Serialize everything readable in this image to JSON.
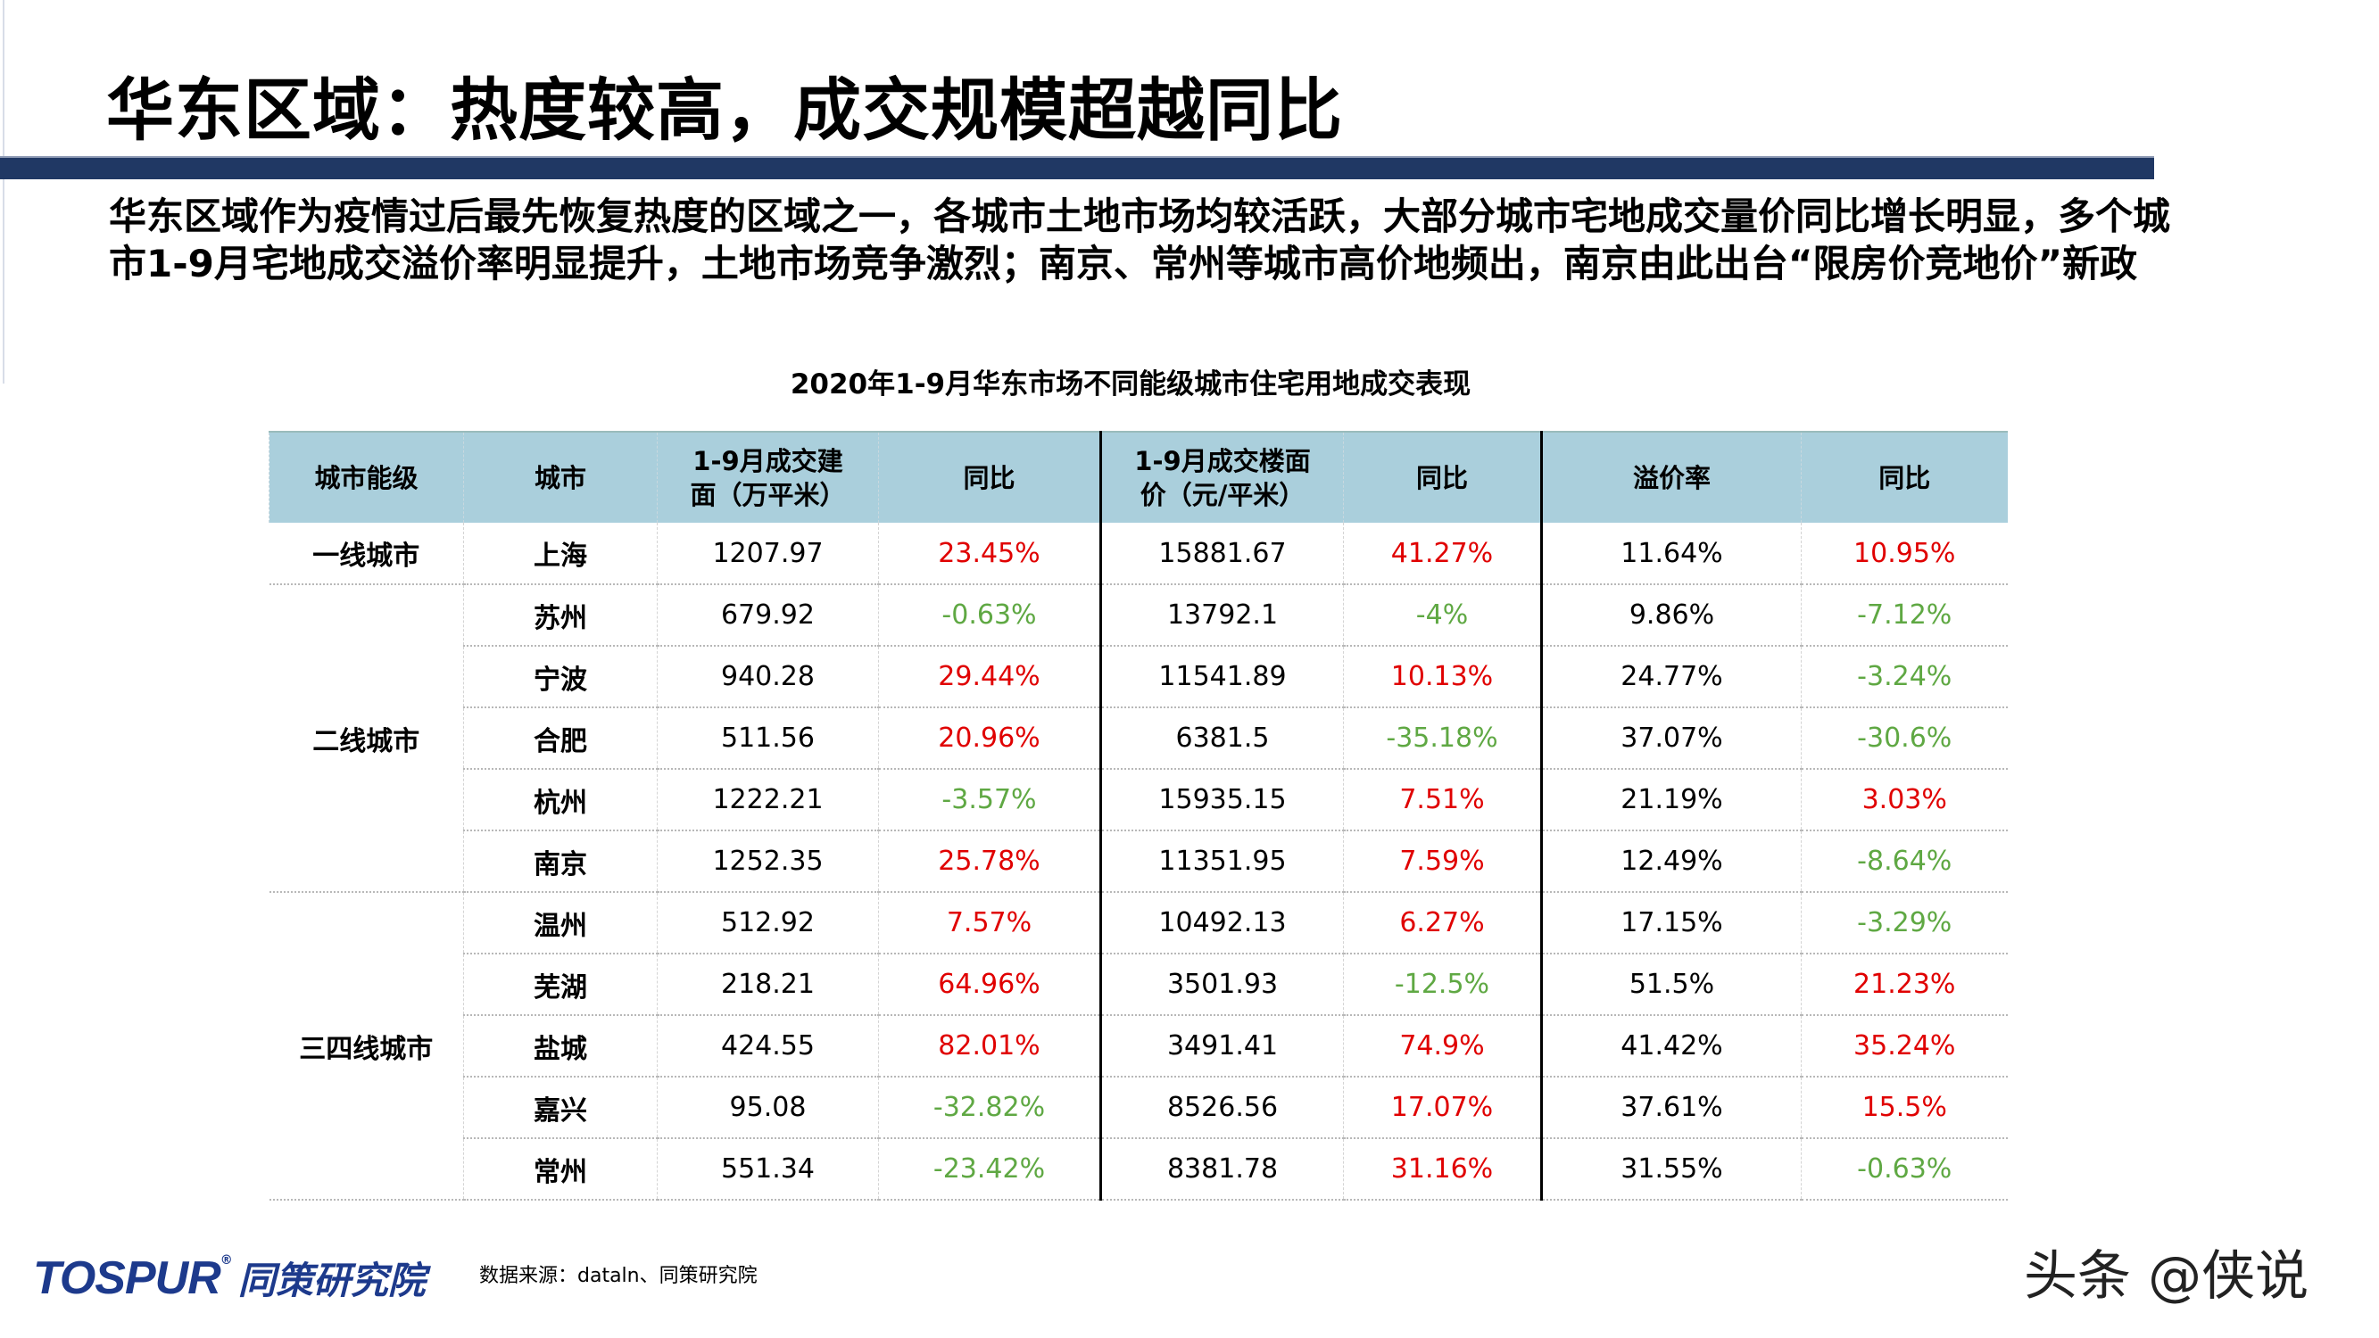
{
  "title": "华东区域：热度较高，成交规模超越同比",
  "paragraph": "华东区域作为疫情过后最先恢复热度的区域之一，各城市土地市场均较活跃，大部分城市宅地成交量价同比增长明显，多个城市1-9月宅地成交溢价率明显提升，土地市场竞争激烈；南京、常州等城市高价地频出，南京由此出台“限房价竞地价”新政",
  "table": {
    "caption": "2020年1-9月华东市场不同能级城市住宅用地成交表现",
    "headers": [
      "城市能级",
      "城市",
      "1-9月成交建面（万平米）",
      "同比",
      "1-9月成交楼面价（元/平米）",
      "同比",
      "溢价率",
      "同比"
    ],
    "tiers": [
      "一线城市",
      "二线城市",
      "三四线城市"
    ],
    "rows": [
      [
        "上海",
        "1207.97",
        "23.45%",
        "15881.67",
        "41.27%",
        "11.64%",
        "10.95%"
      ],
      [
        "苏州",
        "679.92",
        "-0.63%",
        "13792.1",
        "-4%",
        "9.86%",
        "-7.12%"
      ],
      [
        "宁波",
        "940.28",
        "29.44%",
        "11541.89",
        "10.13%",
        "24.77%",
        "-3.24%"
      ],
      [
        "合肥",
        "511.56",
        "20.96%",
        "6381.5",
        "-35.18%",
        "37.07%",
        "-30.6%"
      ],
      [
        "杭州",
        "1222.21",
        "-3.57%",
        "15935.15",
        "7.51%",
        "21.19%",
        "3.03%"
      ],
      [
        "南京",
        "1252.35",
        "25.78%",
        "11351.95",
        "7.59%",
        "12.49%",
        "-8.64%"
      ],
      [
        "温州",
        "512.92",
        "7.57%",
        "10492.13",
        "6.27%",
        "17.15%",
        "-3.29%"
      ],
      [
        "芜湖",
        "218.21",
        "64.96%",
        "3501.93",
        "-12.5%",
        "51.5%",
        "21.23%"
      ],
      [
        "盐城",
        "424.55",
        "82.01%",
        "3491.41",
        "74.9%",
        "41.42%",
        "35.24%"
      ],
      [
        "嘉兴",
        "95.08",
        "-32.82%",
        "8526.56",
        "17.07%",
        "37.61%",
        "15.5%"
      ],
      [
        "常州",
        "551.34",
        "-23.42%",
        "8381.78",
        "31.16%",
        "31.55%",
        "-0.63%"
      ]
    ]
  },
  "colors": {
    "positive": "#e00000",
    "negative": "#5fa843",
    "header_bg": "#aacfdc",
    "bar": "#203864"
  },
  "footer": {
    "logo_en": "TOSPUR",
    "logo_cn": "同策研究院",
    "source": "数据来源：dataln、同策研究院",
    "watermark": "头条 @侠说"
  }
}
